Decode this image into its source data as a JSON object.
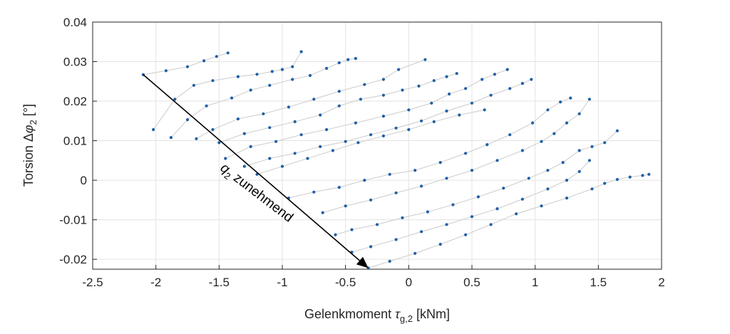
{
  "chart_data": {
    "type": "scatter",
    "xlabel": "Gelenkmoment",
    "xlabel_symbol": "τ",
    "xlabel_sub": "g,2",
    "xlabel_unit": "[kNm]",
    "ylabel": "Torsion Δ",
    "ylabel_symbol": "φ",
    "ylabel_sub": "2",
    "ylabel_unit": "[°]",
    "xlim": [
      -2.5,
      2
    ],
    "ylim": [
      -0.0225,
      0.04
    ],
    "xticks": [
      -2.5,
      -2,
      -1.5,
      -1,
      -0.5,
      0,
      0.5,
      1,
      1.5,
      2
    ],
    "xtick_labels": [
      "-2.5",
      "-2",
      "-1.5",
      "-1",
      "-0.5",
      "0",
      "0.5",
      "1",
      "1.5",
      "2"
    ],
    "yticks": [
      -0.02,
      -0.01,
      0,
      0.01,
      0.02,
      0.03,
      0.04
    ],
    "ytick_labels": [
      "-0.02",
      "-0.01",
      "0",
      "0.01",
      "0.02",
      "0.03",
      "0.04"
    ],
    "grid": true,
    "annotation": {
      "text_main": "q",
      "text_sub": "2",
      "text_rest": " zunehmend",
      "arrow_from": [
        -2.1,
        0.0267
      ],
      "arrow_to": [
        -0.32,
        -0.0222
      ]
    },
    "point_color": "#1f5fa6",
    "line_color": "#cfcfcf",
    "curves": [
      [
        [
          -2.1,
          0.0267
        ],
        [
          -1.92,
          0.0277
        ],
        [
          -1.75,
          0.0287
        ],
        [
          -1.62,
          0.0302
        ],
        [
          -1.52,
          0.0313
        ],
        [
          -1.43,
          0.0322
        ]
      ],
      [
        [
          -2.02,
          0.0128
        ],
        [
          -1.85,
          0.0205
        ],
        [
          -1.7,
          0.024
        ],
        [
          -1.55,
          0.0252
        ],
        [
          -1.35,
          0.0262
        ],
        [
          -1.2,
          0.0268
        ],
        [
          -1.08,
          0.0275
        ],
        [
          -1.0,
          0.028
        ],
        [
          -0.92,
          0.0287
        ],
        [
          -0.85,
          0.0325
        ]
      ],
      [
        [
          -1.88,
          0.0108
        ],
        [
          -1.75,
          0.0153
        ],
        [
          -1.6,
          0.0188
        ],
        [
          -1.4,
          0.0208
        ],
        [
          -1.25,
          0.0228
        ],
        [
          -1.1,
          0.024
        ],
        [
          -0.92,
          0.0255
        ],
        [
          -0.78,
          0.0265
        ],
        [
          -0.65,
          0.0283
        ],
        [
          -0.55,
          0.0297
        ],
        [
          -0.48,
          0.0305
        ],
        [
          -0.42,
          0.0308
        ]
      ],
      [
        [
          -1.68,
          0.0105
        ],
        [
          -1.55,
          0.0128
        ],
        [
          -1.35,
          0.0155
        ],
        [
          -1.15,
          0.0168
        ],
        [
          -0.95,
          0.0185
        ],
        [
          -0.75,
          0.0205
        ],
        [
          -0.55,
          0.0225
        ],
        [
          -0.35,
          0.0242
        ],
        [
          -0.2,
          0.0255
        ],
        [
          -0.08,
          0.028
        ],
        [
          0.13,
          0.0305
        ]
      ],
      [
        [
          -1.5,
          0.0095
        ],
        [
          -1.3,
          0.0118
        ],
        [
          -1.1,
          0.0133
        ],
        [
          -0.9,
          0.0148
        ],
        [
          -0.7,
          0.0165
        ],
        [
          -0.55,
          0.0188
        ],
        [
          -0.38,
          0.0205
        ],
        [
          -0.2,
          0.0215
        ],
        [
          -0.05,
          0.0228
        ],
        [
          0.08,
          0.0238
        ],
        [
          0.2,
          0.0252
        ],
        [
          0.3,
          0.0262
        ],
        [
          0.38,
          0.027
        ]
      ],
      [
        [
          -1.45,
          0.0055
        ],
        [
          -1.25,
          0.0085
        ],
        [
          -1.05,
          0.0098
        ],
        [
          -0.85,
          0.0115
        ],
        [
          -0.65,
          0.0128
        ],
        [
          -0.42,
          0.0145
        ],
        [
          -0.2,
          0.0162
        ],
        [
          0.0,
          0.0178
        ],
        [
          0.18,
          0.0195
        ],
        [
          0.32,
          0.0218
        ],
        [
          0.45,
          0.0232
        ],
        [
          0.58,
          0.0255
        ],
        [
          0.68,
          0.0268
        ],
        [
          0.78,
          0.028
        ]
      ],
      [
        [
          -1.3,
          0.0035
        ],
        [
          -1.1,
          0.0055
        ],
        [
          -0.9,
          0.0068
        ],
        [
          -0.7,
          0.0085
        ],
        [
          -0.5,
          0.0098
        ],
        [
          -0.3,
          0.0115
        ],
        [
          -0.1,
          0.0132
        ],
        [
          0.1,
          0.015
        ],
        [
          0.3,
          0.0175
        ],
        [
          0.5,
          0.0195
        ],
        [
          0.65,
          0.0215
        ],
        [
          0.8,
          0.0232
        ],
        [
          0.9,
          0.0245
        ],
        [
          0.97,
          0.0255
        ]
      ],
      [
        [
          -1.2,
          0.0015
        ],
        [
          -1.0,
          0.0035
        ],
        [
          -0.8,
          0.0055
        ],
        [
          -0.6,
          0.0075
        ],
        [
          -0.4,
          0.0095
        ],
        [
          -0.2,
          0.0112
        ],
        [
          0.0,
          0.0128
        ],
        [
          0.2,
          0.0148
        ],
        [
          0.4,
          0.0165
        ],
        [
          0.6,
          0.0178
        ]
      ],
      [
        [
          -0.95,
          -0.0045
        ],
        [
          -0.75,
          -0.003
        ],
        [
          -0.55,
          -0.0018
        ],
        [
          -0.35,
          0.0
        ],
        [
          -0.15,
          0.0015
        ],
        [
          0.05,
          0.0025
        ],
        [
          0.25,
          0.0045
        ],
        [
          0.45,
          0.0068
        ],
        [
          0.62,
          0.009
        ],
        [
          0.8,
          0.0115
        ],
        [
          0.98,
          0.0145
        ],
        [
          1.1,
          0.0178
        ],
        [
          1.2,
          0.0198
        ],
        [
          1.28,
          0.0208
        ]
      ],
      [
        [
          -0.68,
          -0.0082
        ],
        [
          -0.5,
          -0.0065
        ],
        [
          -0.3,
          -0.005
        ],
        [
          -0.1,
          -0.0032
        ],
        [
          0.1,
          -0.0015
        ],
        [
          0.3,
          0.0005
        ],
        [
          0.5,
          0.0025
        ],
        [
          0.7,
          0.005
        ],
        [
          0.9,
          0.0075
        ],
        [
          1.05,
          0.0098
        ],
        [
          1.15,
          0.0118
        ],
        [
          1.25,
          0.0145
        ],
        [
          1.35,
          0.0168
        ],
        [
          1.43,
          0.0205
        ]
      ],
      [
        [
          -0.58,
          -0.0138
        ],
        [
          -0.45,
          -0.0125
        ],
        [
          -0.25,
          -0.0112
        ],
        [
          -0.05,
          -0.0095
        ],
        [
          0.15,
          -0.008
        ],
        [
          0.35,
          -0.0062
        ],
        [
          0.55,
          -0.0042
        ],
        [
          0.75,
          -0.002
        ],
        [
          0.95,
          0.0005
        ],
        [
          1.1,
          0.0025
        ],
        [
          1.22,
          0.0045
        ],
        [
          1.35,
          0.0075
        ],
        [
          1.45,
          0.0085
        ],
        [
          1.55,
          0.0095
        ],
        [
          1.65,
          0.0125
        ]
      ],
      [
        [
          -0.45,
          -0.0182
        ],
        [
          -0.3,
          -0.0168
        ],
        [
          -0.1,
          -0.015
        ],
        [
          0.1,
          -0.013
        ],
        [
          0.3,
          -0.0112
        ],
        [
          0.5,
          -0.0092
        ],
        [
          0.7,
          -0.0072
        ],
        [
          0.9,
          -0.0048
        ],
        [
          1.1,
          -0.0022
        ],
        [
          1.25,
          0.0
        ],
        [
          1.35,
          0.0022
        ],
        [
          1.43,
          0.005
        ]
      ],
      [
        [
          -0.32,
          -0.0222
        ],
        [
          -0.15,
          -0.0205
        ],
        [
          0.05,
          -0.0185
        ],
        [
          0.25,
          -0.0162
        ],
        [
          0.45,
          -0.0138
        ],
        [
          0.65,
          -0.0112
        ],
        [
          0.85,
          -0.0085
        ],
        [
          1.05,
          -0.0065
        ],
        [
          1.25,
          -0.0045
        ],
        [
          1.45,
          -0.0022
        ],
        [
          1.55,
          -0.0008
        ],
        [
          1.65,
          0.0002
        ],
        [
          1.75,
          0.0008
        ],
        [
          1.85,
          0.0012
        ],
        [
          1.9,
          0.0015
        ]
      ]
    ]
  }
}
